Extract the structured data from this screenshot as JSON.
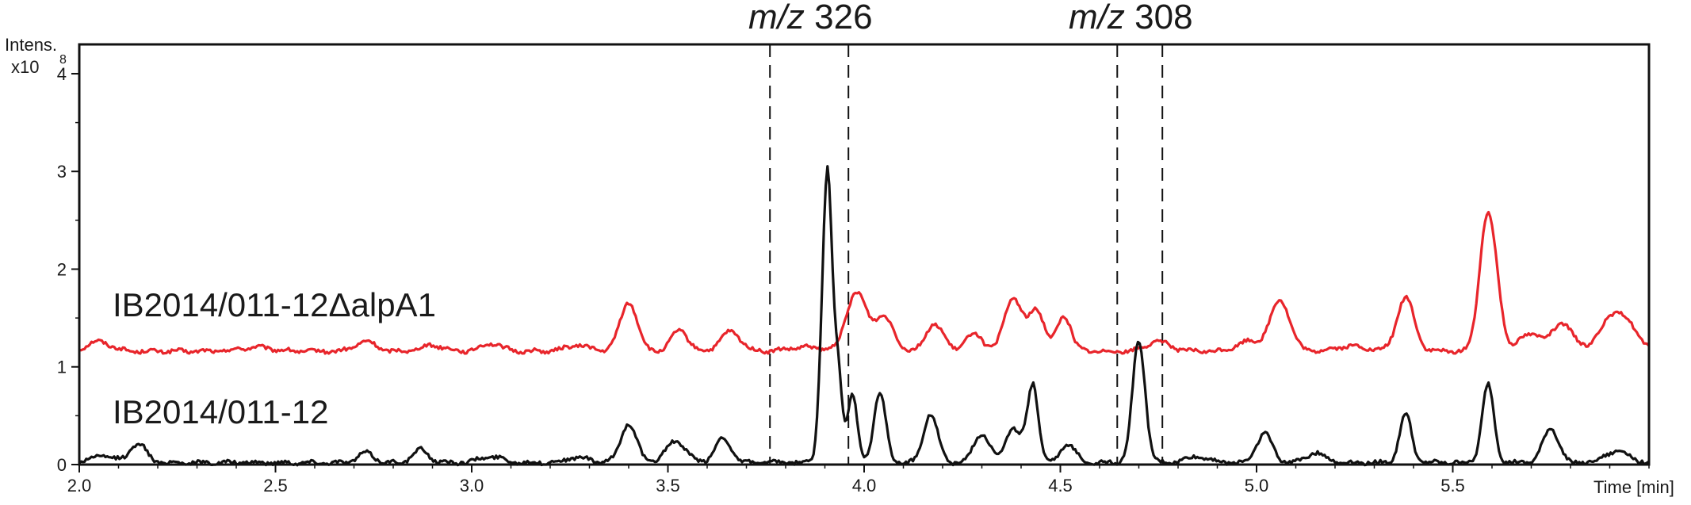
{
  "chart_data": {
    "type": "line",
    "xlabel": "Time [min]",
    "ylabel": "Intens.",
    "yscale_label": "x10",
    "yscale_exp": "8",
    "xlim": [
      2.0,
      6.0
    ],
    "ylim": [
      0,
      4.3
    ],
    "x_ticks": [
      2.0,
      2.5,
      3.0,
      3.5,
      4.0,
      4.5,
      5.0,
      5.5
    ],
    "x_tick_labels": [
      "2.0",
      "2.5",
      "3.0",
      "3.5",
      "4.0",
      "4.5",
      "5.0",
      "5.5"
    ],
    "y_ticks": [
      0,
      1,
      2,
      3,
      4
    ],
    "y_tick_labels": [
      "0",
      "1",
      "2",
      "3",
      "4"
    ],
    "colors": {
      "red_trace": "#e8252b",
      "black_trace": "#111111",
      "frame": "#111111"
    },
    "regions": [
      {
        "label_prefix": "m/z",
        "label_value": "326",
        "x_start": 3.76,
        "x_end": 3.96
      },
      {
        "label_prefix": "m/z",
        "label_value": "308",
        "x_start": 4.645,
        "x_end": 4.76
      }
    ],
    "series": [
      {
        "name": "IB2014/011-12ΔalpA1",
        "color": "#e8252b",
        "baseline": 1.16,
        "peaks": [
          [
            2.05,
            0.1,
            0.03
          ],
          [
            2.45,
            0.04,
            0.04
          ],
          [
            2.73,
            0.1,
            0.025
          ],
          [
            2.9,
            0.06,
            0.03
          ],
          [
            3.05,
            0.08,
            0.025
          ],
          [
            3.27,
            0.06,
            0.03
          ],
          [
            3.4,
            0.5,
            0.022
          ],
          [
            3.53,
            0.22,
            0.02
          ],
          [
            3.66,
            0.2,
            0.025
          ],
          [
            3.85,
            0.04,
            0.04
          ],
          [
            3.98,
            0.6,
            0.025
          ],
          [
            4.05,
            0.35,
            0.025
          ],
          [
            4.18,
            0.28,
            0.022
          ],
          [
            4.28,
            0.18,
            0.022
          ],
          [
            4.38,
            0.55,
            0.022
          ],
          [
            4.44,
            0.42,
            0.02
          ],
          [
            4.51,
            0.36,
            0.018
          ],
          [
            4.75,
            0.1,
            0.03
          ],
          [
            4.98,
            0.1,
            0.03
          ],
          [
            5.06,
            0.52,
            0.025
          ],
          [
            5.24,
            0.05,
            0.04
          ],
          [
            5.38,
            0.55,
            0.022
          ],
          [
            5.58,
            0.72,
            0.018
          ],
          [
            5.6,
            0.9,
            0.02
          ],
          [
            5.7,
            0.18,
            0.03
          ],
          [
            5.78,
            0.28,
            0.025
          ],
          [
            5.92,
            0.4,
            0.04
          ]
        ]
      },
      {
        "name": "IB2014/011-12",
        "color": "#111111",
        "baseline": 0.02,
        "peaks": [
          [
            2.06,
            0.07,
            0.03
          ],
          [
            2.15,
            0.2,
            0.02
          ],
          [
            2.73,
            0.1,
            0.02
          ],
          [
            2.87,
            0.13,
            0.02
          ],
          [
            3.05,
            0.06,
            0.03
          ],
          [
            3.27,
            0.05,
            0.03
          ],
          [
            3.4,
            0.4,
            0.02
          ],
          [
            3.52,
            0.22,
            0.025
          ],
          [
            3.64,
            0.25,
            0.02
          ],
          [
            3.9,
            1.9,
            0.012
          ],
          [
            3.91,
            1.3,
            0.009
          ],
          [
            3.93,
            1.1,
            0.012
          ],
          [
            3.97,
            0.7,
            0.012
          ],
          [
            4.04,
            0.72,
            0.015
          ],
          [
            4.17,
            0.5,
            0.018
          ],
          [
            4.3,
            0.3,
            0.02
          ],
          [
            4.38,
            0.35,
            0.02
          ],
          [
            4.43,
            0.8,
            0.014
          ],
          [
            4.52,
            0.18,
            0.02
          ],
          [
            4.7,
            1.25,
            0.016
          ],
          [
            4.85,
            0.06,
            0.03
          ],
          [
            5.02,
            0.3,
            0.02
          ],
          [
            5.15,
            0.1,
            0.025
          ],
          [
            5.38,
            0.5,
            0.015
          ],
          [
            5.59,
            0.8,
            0.015
          ],
          [
            5.75,
            0.35,
            0.02
          ],
          [
            5.92,
            0.12,
            0.03
          ]
        ]
      }
    ]
  }
}
